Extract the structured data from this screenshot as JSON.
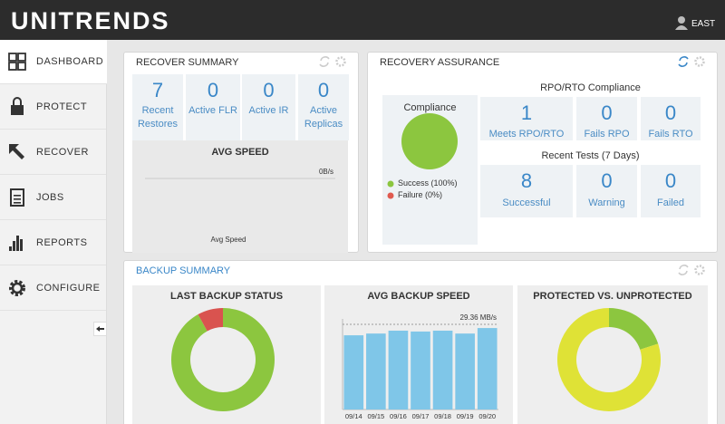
{
  "header": {
    "logo": "UNITRENDS",
    "user": "EAST"
  },
  "nav": {
    "items": [
      "DASHBOARD",
      "PROTECT",
      "RECOVER",
      "JOBS",
      "REPORTS",
      "CONFIGURE"
    ]
  },
  "recover_summary": {
    "title": "RECOVER SUMMARY",
    "stats": [
      {
        "value": 7,
        "label": "Recent Restores"
      },
      {
        "value": 0,
        "label": "Active FLR"
      },
      {
        "value": 0,
        "label": "Active IR"
      },
      {
        "value": 0,
        "label": "Active Replicas"
      }
    ],
    "avg_speed": {
      "title": "AVG SPEED",
      "value_label": "0B/s",
      "xlabel": "Avg Speed"
    }
  },
  "recovery_assurance": {
    "title": "RECOVERY ASSURANCE",
    "compliance": {
      "type": "pie",
      "title": "Compliance",
      "series": [
        {
          "name": "Success (100%)",
          "color": "#8cc63f",
          "value": 100
        },
        {
          "name": "Failure (0%)",
          "color": "#e05a4f",
          "value": 0
        }
      ]
    },
    "rpo_title": "RPO/RTO Compliance",
    "rpo_stats": [
      {
        "value": 1,
        "label": "Meets RPO/RTO"
      },
      {
        "value": 0,
        "label": "Fails RPO"
      },
      {
        "value": 0,
        "label": "Fails RTO"
      }
    ],
    "tests_title": "Recent Tests (7 Days)",
    "tests": [
      {
        "value": 8,
        "label": "Successful"
      },
      {
        "value": 0,
        "label": "Warning"
      },
      {
        "value": 0,
        "label": "Failed"
      }
    ]
  },
  "backup_summary": {
    "title": "BACKUP SUMMARY",
    "charts": [
      {
        "type": "donut",
        "title": "LAST BACKUP STATUS",
        "values": [
          92,
          8
        ],
        "colors": [
          "#8cc63f",
          "#d9534f"
        ]
      },
      {
        "type": "bar",
        "title": "AVG BACKUP SPEED",
        "categories": [
          "09/14",
          "09/15",
          "09/16",
          "09/17",
          "09/18",
          "09/19",
          "09/20"
        ],
        "values": [
          25.6,
          26.2,
          27.2,
          26.9,
          27.2,
          26.2,
          28.1
        ],
        "color": "#7fc6e8",
        "ylim": [
          0,
          30
        ],
        "annotation": {
          "value": 29.36,
          "label": "29.36 MB/s"
        }
      },
      {
        "type": "donut",
        "title": "PROTECTED VS. UNPROTECTED",
        "values": [
          20,
          80
        ],
        "colors": [
          "#8cc63f",
          "#dfe236"
        ]
      }
    ]
  }
}
